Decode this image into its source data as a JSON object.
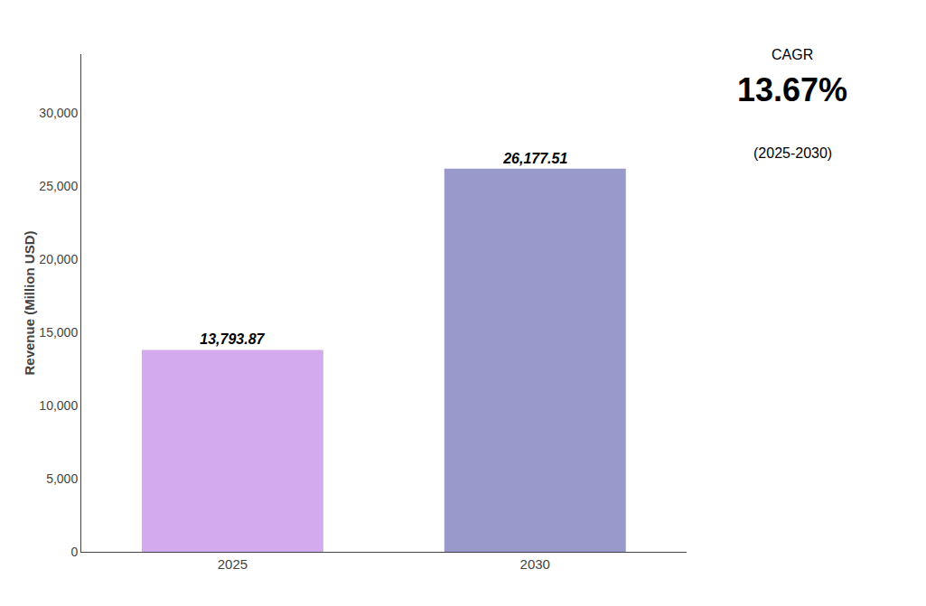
{
  "chart_data": {
    "type": "bar",
    "ylabel": "Revenue (Million USD)",
    "categories": [
      "2025",
      "2030"
    ],
    "values": [
      13793.87,
      26177.51
    ],
    "value_labels": [
      "13,793.87",
      "26,177.51"
    ],
    "data_labels": true,
    "colors": [
      "#D4AAEE",
      "#9999CC"
    ],
    "ylim": [
      0,
      34000
    ],
    "yticks": [
      0,
      {
        "value": 5000,
        "label": "5,000"
      },
      {
        "value": 10000,
        "label": "10,000"
      },
      {
        "value": 15000,
        "label": "15,000"
      },
      {
        "value": 20000,
        "label": "20,000"
      },
      {
        "value": 25000,
        "label": "25,000"
      },
      {
        "value": 30000,
        "label": "30,000"
      }
    ],
    "grid": false,
    "annotations": [
      "CAGR",
      "13.67%",
      "(2025-2030)"
    ]
  }
}
